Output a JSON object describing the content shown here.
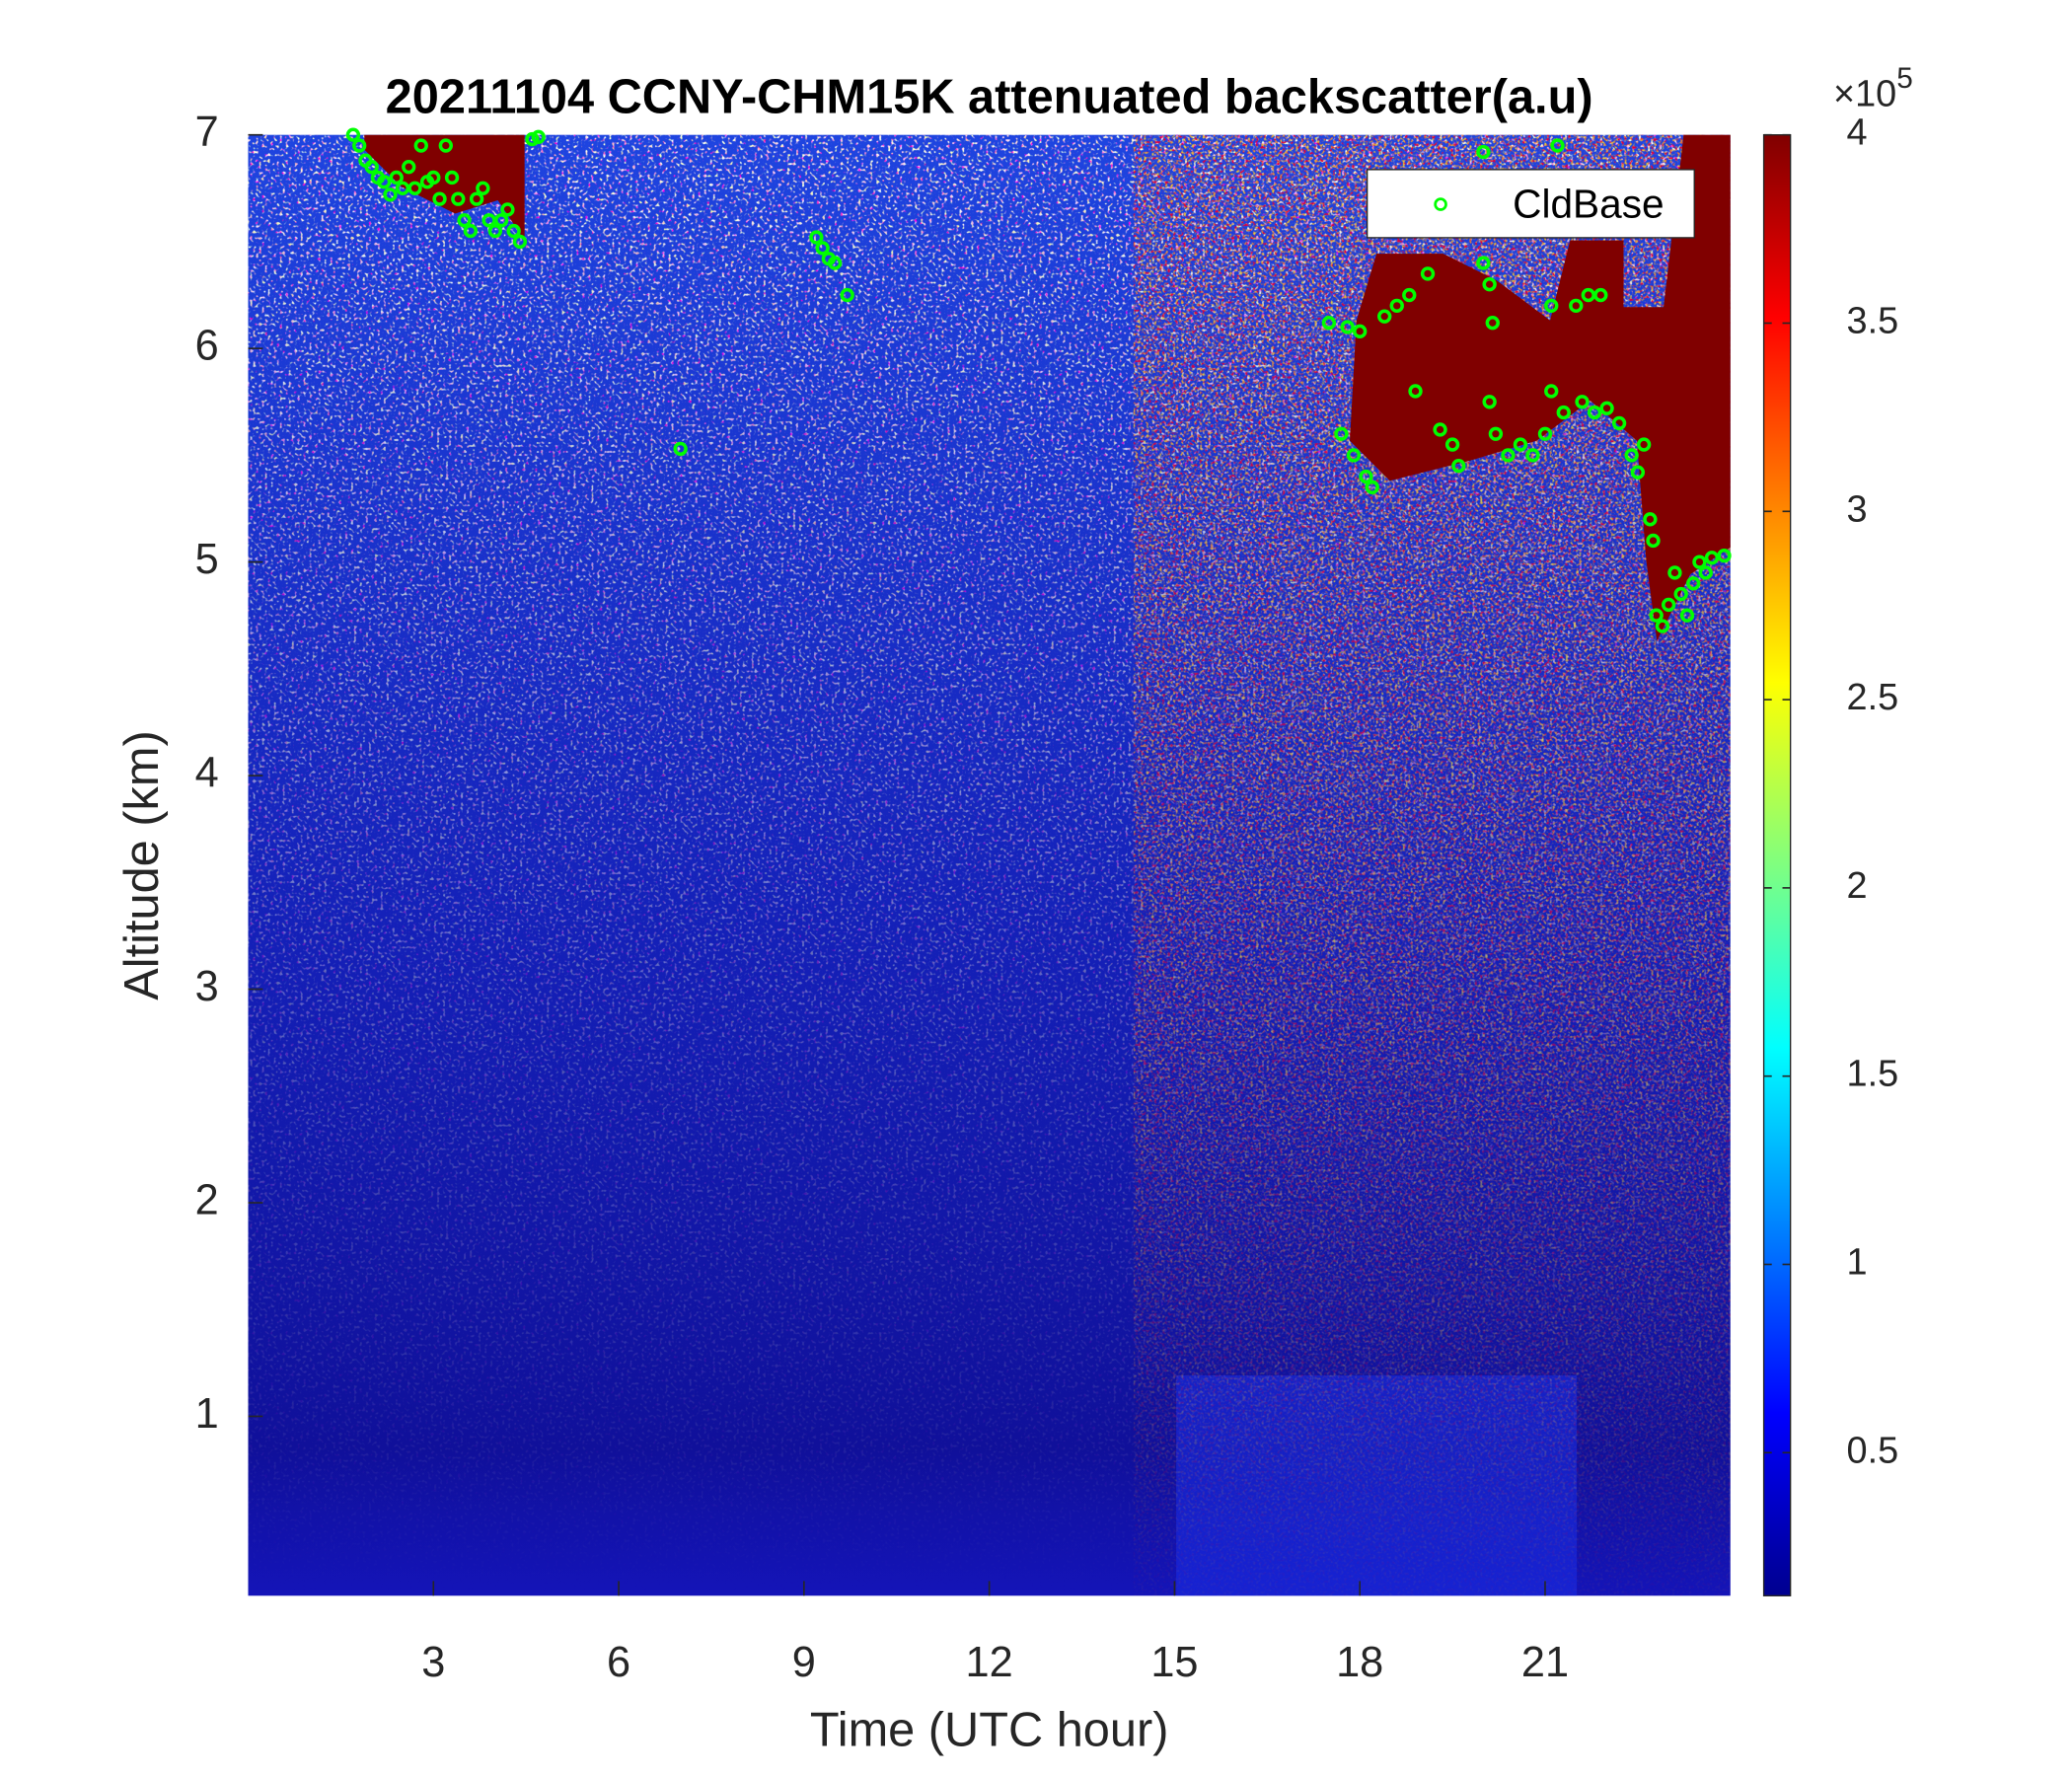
{
  "chart_data": {
    "type": "scatter",
    "title": "20211104 CCNY-CHM15K attenuated backscatter(a.u)",
    "x_label": "Time (UTC hour)",
    "y_label": "Altitude (km)",
    "xlim": [
      0,
      24
    ],
    "xticks": [
      3,
      6,
      9,
      12,
      15,
      18,
      21
    ],
    "ylim": [
      0.16,
      7
    ],
    "yticks": [
      1,
      2,
      3,
      4,
      5,
      6,
      7
    ],
    "colorbar": {
      "clim": [
        0.12,
        4
      ],
      "ticks": [
        0.5,
        1,
        1.5,
        2,
        2.5,
        3,
        3.5,
        4
      ],
      "multiplier": "×10",
      "exponent": "5",
      "colormap": "jet"
    },
    "legend": "northeast",
    "series": [
      {
        "name": "CldBase",
        "color": "#00ff00",
        "x": [
          1.7,
          1.8,
          1.9,
          2.0,
          2.1,
          2.2,
          2.3,
          2.4,
          2.5,
          2.6,
          2.7,
          2.8,
          2.9,
          3.0,
          3.1,
          3.2,
          3.3,
          3.4,
          3.5,
          3.6,
          3.7,
          3.8,
          3.9,
          4.0,
          4.1,
          4.2,
          4.3,
          4.4,
          4.6,
          4.7,
          7.0,
          9.2,
          9.3,
          9.4,
          9.5,
          9.7,
          17.5,
          17.8,
          18.0,
          17.7,
          17.9,
          18.1,
          18.2,
          18.4,
          18.6,
          18.8,
          19.1,
          18.9,
          19.3,
          19.5,
          19.6,
          20.0,
          20.1,
          20.15,
          20.1,
          20.2,
          20.4,
          20.6,
          20.8,
          21.0,
          21.1,
          21.1,
          21.3,
          21.5,
          21.7,
          21.9,
          21.2,
          21.6,
          21.8,
          22.0,
          22.2,
          22.4,
          22.5,
          22.6,
          22.7,
          22.75,
          22.8,
          22.9,
          23.0,
          23.1,
          23.2,
          23.3,
          23.4,
          23.5,
          23.6,
          23.7,
          23.9,
          20.0
        ],
        "values": [
          7.0,
          6.95,
          6.88,
          6.85,
          6.8,
          6.78,
          6.72,
          6.8,
          6.75,
          6.85,
          6.75,
          6.95,
          6.78,
          6.8,
          6.7,
          6.95,
          6.8,
          6.7,
          6.6,
          6.55,
          6.7,
          6.75,
          6.6,
          6.55,
          6.6,
          6.65,
          6.55,
          6.5,
          6.98,
          6.99,
          5.53,
          6.52,
          6.47,
          6.42,
          6.4,
          6.25,
          6.12,
          6.1,
          6.08,
          5.6,
          5.5,
          5.4,
          5.35,
          6.15,
          6.2,
          6.25,
          6.35,
          5.8,
          5.62,
          5.55,
          5.45,
          6.4,
          6.3,
          6.12,
          5.75,
          5.6,
          5.5,
          5.55,
          5.5,
          5.6,
          6.2,
          5.8,
          5.7,
          6.2,
          6.25,
          6.25,
          6.95,
          5.75,
          5.7,
          5.72,
          5.65,
          5.5,
          5.42,
          5.55,
          5.2,
          5.1,
          4.75,
          4.7,
          4.8,
          4.95,
          4.85,
          4.75,
          4.9,
          5.0,
          4.95,
          5.02,
          5.03,
          6.92
        ]
      }
    ]
  }
}
